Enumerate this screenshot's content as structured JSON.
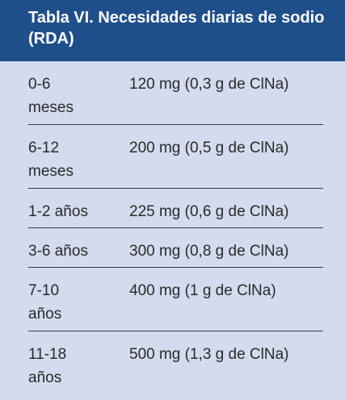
{
  "header": {
    "title": "Tabla VI.  Necesidades diarias de sodio (RDA)"
  },
  "table": {
    "rows": [
      [
        "0-6 meses",
        "120 mg (0,3 g de ClNa)"
      ],
      [
        "6-12 meses",
        "200 mg (0,5 g de ClNa)"
      ],
      [
        "1-2 años",
        "225 mg (0,6 g de ClNa)"
      ],
      [
        "3-6 años",
        "300 mg (0,8 g de ClNa)"
      ],
      [
        "7-10 años",
        "400 mg (1 g de ClNa)"
      ],
      [
        "11-18 años",
        "500 mg (1,3 g de ClNa)"
      ]
    ]
  }
}
